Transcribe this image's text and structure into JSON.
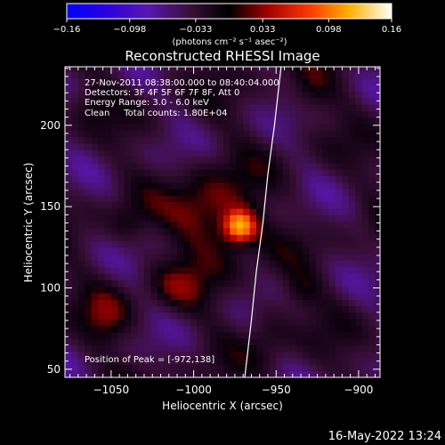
{
  "chart_data": {
    "type": "heatmap",
    "title": "Reconstructed RHESSI Image",
    "xlabel": "Heliocentric X (arcsec)",
    "ylabel": "Heliocentric Y (arcsec)",
    "xlim": [
      -1078,
      -887
    ],
    "ylim": [
      45,
      236
    ],
    "x_ticks": [
      -1050,
      -1000,
      -950,
      -900
    ],
    "y_ticks": [
      50,
      100,
      150,
      200
    ],
    "x_tick_labels": [
      "−1050",
      "−1000",
      "−950",
      "−900"
    ],
    "y_tick_labels": [
      "50",
      "100",
      "150",
      "200"
    ],
    "colorbar": {
      "min": -0.16,
      "max": 0.16,
      "ticks": [
        -0.16,
        -0.098,
        -0.033,
        0.033,
        0.098,
        0.16
      ],
      "tick_labels": [
        "−0.16",
        "−0.098",
        "−0.033",
        "0.033",
        "0.098",
        "0.16"
      ],
      "unit_label": "(photons cm⁻² s⁻¹ asec⁻²)",
      "colormap": [
        "#0000ff",
        "#3c00c8",
        "#6a1fa0",
        "#5a1a5a",
        "#000000",
        "#b00000",
        "#ff3c00",
        "#ff9a00",
        "#ffd800",
        "#ffffff"
      ]
    },
    "annotations": [
      "27-Nov-2011 08:38:00.000 to 08:40:04.000",
      "Detectors: 3F 4F 5F 6F 7F 8F, Att 0",
      "Energy Range: 3.0 - 6.0 keV",
      "Clean     Total counts: 1.80E+04"
    ],
    "peak_label": "Position of Peak = [-972,138]",
    "peak": {
      "x": -972,
      "y": 138,
      "value": 0.16
    },
    "limb_curve": [
      [
        -969,
        45
      ],
      [
        -965,
        80
      ],
      [
        -962,
        110
      ],
      [
        -958,
        140
      ],
      [
        -955,
        170
      ],
      [
        -951,
        200
      ],
      [
        -947,
        236
      ]
    ],
    "sources": [
      {
        "x": -972,
        "y": 138,
        "amp": 0.13,
        "sx": 7,
        "sy": 7
      },
      {
        "x": -985,
        "y": 142,
        "amp": 0.06,
        "sx": 16,
        "sy": 20
      },
      {
        "x": -1000,
        "y": 148,
        "amp": 0.025,
        "sx": 12,
        "sy": 12
      },
      {
        "x": -1053,
        "y": 82,
        "amp": 0.04,
        "sx": 10,
        "sy": 12
      },
      {
        "x": -1040,
        "y": 140,
        "amp": 0.03,
        "sx": 9,
        "sy": 9
      },
      {
        "x": -935,
        "y": 98,
        "amp": 0.03,
        "sx": 8,
        "sy": 8
      },
      {
        "x": -1010,
        "y": 100,
        "amp": 0.035,
        "sx": 12,
        "sy": 10
      },
      {
        "x": -930,
        "y": 220,
        "amp": 0.03,
        "sx": 10,
        "sy": 10
      },
      {
        "x": -955,
        "y": 75,
        "amp": 0.03,
        "sx": 9,
        "sy": 14
      },
      {
        "x": -1060,
        "y": 215,
        "amp": 0.02,
        "sx": 8,
        "sy": 8
      }
    ]
  },
  "timestamp": "16-May-2022 13:24"
}
